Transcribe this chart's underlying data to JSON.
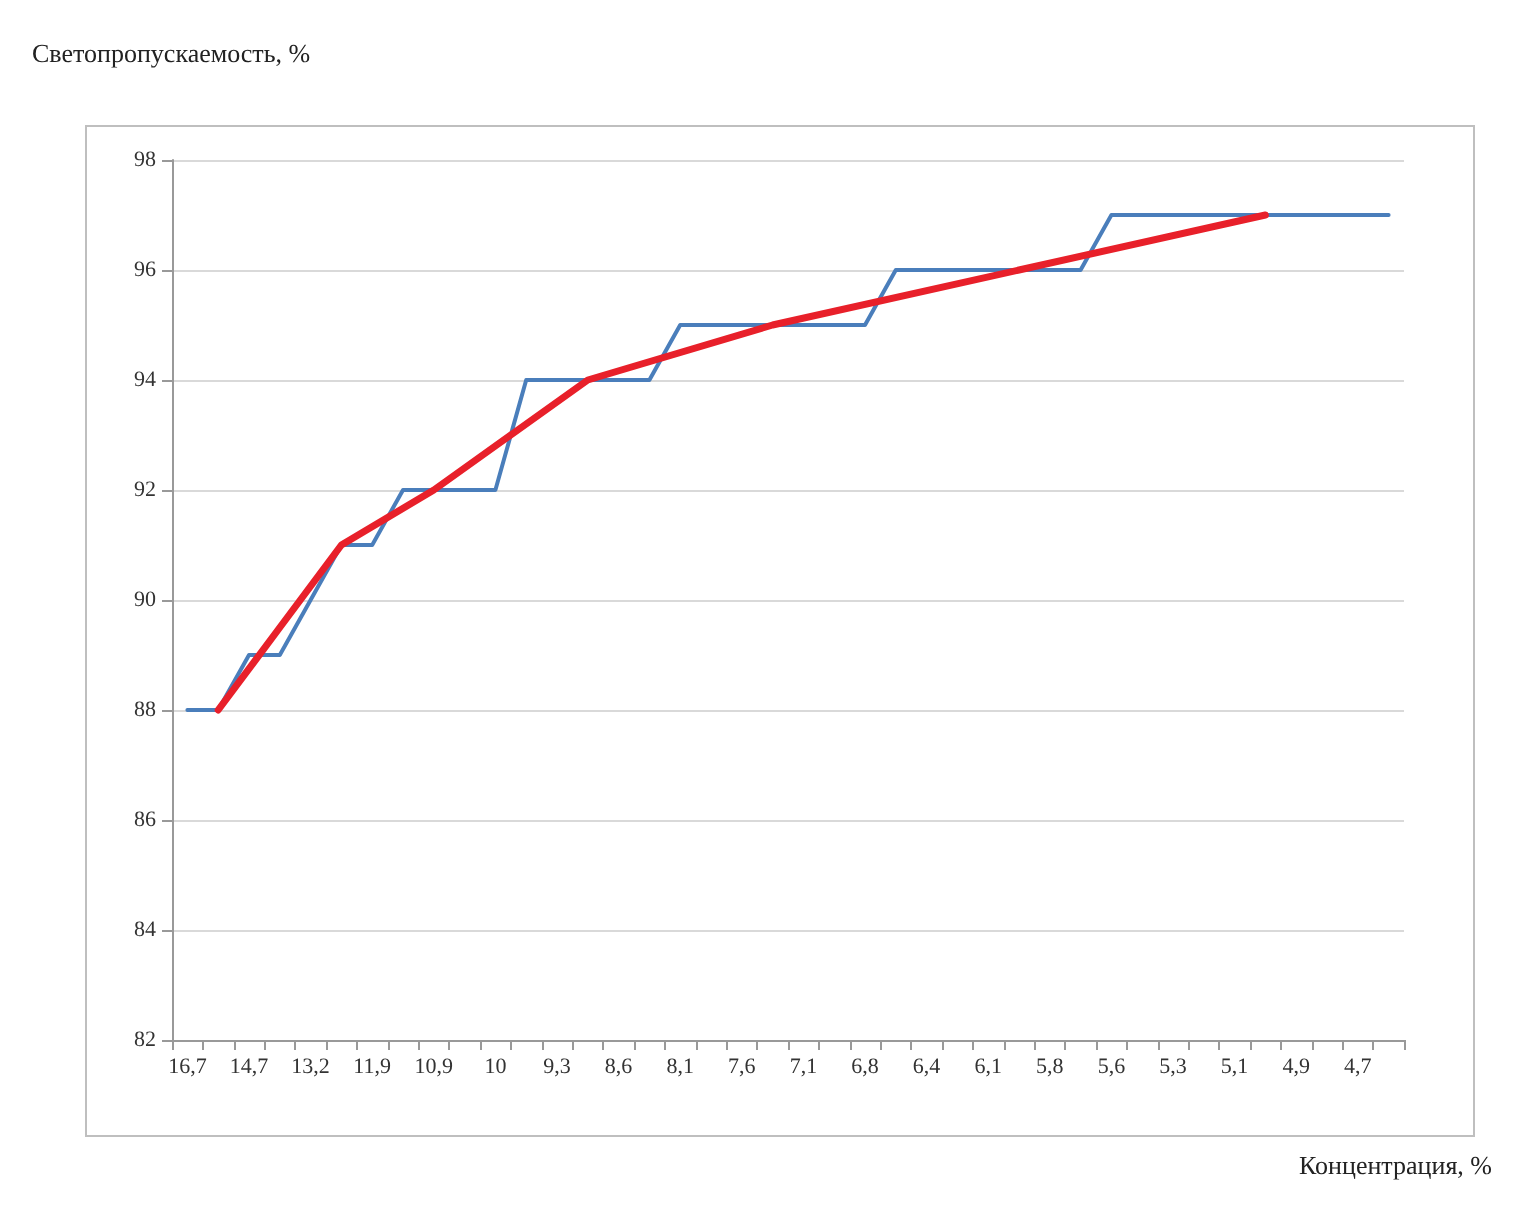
{
  "chart_data": {
    "type": "line",
    "ylabel": "Светопропускаемость, %",
    "xlabel": "Концентрация, %",
    "categories": [
      "16,7",
      null,
      "14,7",
      null,
      "13,2",
      null,
      "11,9",
      null,
      "10,9",
      null,
      "10",
      null,
      "9,3",
      null,
      "8,6",
      null,
      "8,1",
      null,
      "7,6",
      null,
      "7,1",
      null,
      "6,8",
      null,
      "6,4",
      null,
      "6,1",
      null,
      "5,8",
      null,
      "5,6",
      null,
      "5,3",
      null,
      "5,1",
      null,
      "4,9",
      null,
      "4,7",
      null
    ],
    "series": [
      {
        "color": "#4a7ebb",
        "values": [
          88,
          88,
          89,
          89,
          90,
          91,
          91,
          92,
          92,
          92,
          92,
          94,
          94,
          94,
          94,
          94,
          95,
          95,
          95,
          95,
          95,
          95,
          95,
          96,
          96,
          96,
          96,
          96,
          96,
          96,
          97,
          97,
          97,
          97,
          97,
          97,
          97,
          97,
          97,
          97
        ]
      },
      {
        "color": "#e8202a",
        "values": [
          null,
          88,
          null,
          89.5,
          null,
          91,
          null,
          null,
          92,
          null,
          null,
          null,
          null,
          94,
          null,
          null,
          null,
          null,
          null,
          95,
          null,
          null,
          null,
          null,
          null,
          null,
          null,
          96,
          null,
          null,
          null,
          null,
          null,
          null,
          null,
          97,
          null,
          null,
          null,
          null
        ]
      }
    ],
    "ylim": [
      82,
      98
    ],
    "yticks": [
      82,
      84,
      86,
      88,
      90,
      92,
      94,
      96,
      98
    ],
    "grid": "y",
    "marker": "none",
    "line_style": "solid"
  }
}
